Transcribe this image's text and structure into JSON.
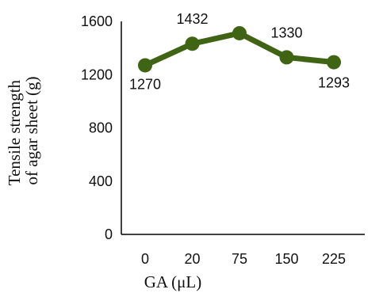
{
  "chart_data": {
    "type": "line",
    "categories": [
      "0",
      "20",
      "75",
      "150",
      "225"
    ],
    "series": [
      {
        "values": [
          1270,
          1432,
          1511,
          1330,
          1293
        ],
        "color": "#3f6414"
      }
    ],
    "data_labels": [
      "1270",
      "1432",
      "",
      "1330",
      "1293"
    ],
    "xlabel": "GA (μL)",
    "ylabel_lines": [
      "Tensile strength",
      "of agar sheet (g)"
    ],
    "ylim": [
      0,
      1600
    ],
    "yticks": [
      0,
      400,
      800,
      1200,
      1600
    ],
    "ytick_labels": [
      "0",
      "400",
      "800",
      "1200",
      "1600"
    ],
    "grid": false,
    "legend": "none",
    "axis_color": "#000000"
  }
}
